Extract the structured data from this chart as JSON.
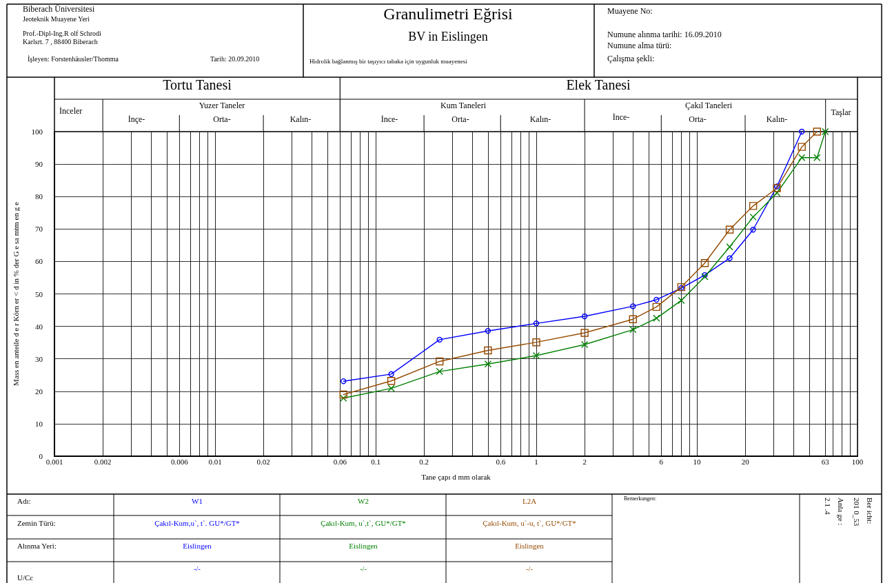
{
  "chart_data": {
    "type": "line",
    "title": "Granulimetri Eğrisi",
    "subtitle": "BV in Eislingen",
    "xlabel": "Tane çapı d mm olarak",
    "ylabel": "Mass en anteile d e r Körn er < d in % der G e sa mtm en g e",
    "x": [
      0.063,
      0.125,
      0.25,
      0.5,
      1,
      2,
      4,
      5.6,
      8,
      11.2,
      16,
      22.4,
      31.5,
      45,
      56,
      63
    ],
    "series": [
      {
        "name": "W1",
        "color": "#0000ff",
        "marker": "circle",
        "values": [
          23.1,
          25.3,
          35.9,
          38.6,
          40.9,
          43.1,
          46.2,
          48.2,
          51.8,
          55.8,
          61.0,
          69.8,
          83.1,
          100,
          null,
          null
        ]
      },
      {
        "name": "W2",
        "color": "#008000",
        "marker": "cross",
        "values": [
          17.9,
          20.9,
          26.1,
          28.4,
          31.0,
          34.4,
          39.0,
          42.5,
          48.0,
          55.3,
          64.5,
          73.7,
          81.1,
          92.0,
          92.0,
          100
        ]
      },
      {
        "name": "L2A",
        "color": "#964b00",
        "marker": "square",
        "values": [
          19.0,
          23.2,
          29.2,
          32.6,
          35.1,
          38.0,
          42.2,
          46.0,
          52.1,
          59.5,
          69.8,
          77.1,
          82.6,
          95.3,
          100,
          null
        ]
      }
    ],
    "xlim": [
      0.001,
      100
    ],
    "ylim": [
      0,
      100
    ],
    "xticks": [
      0.001,
      0.002,
      {
        "value": 0.003,
        "label": null
      },
      {
        "value": 0.004,
        "label": null
      },
      {
        "value": 0.005,
        "label": null
      },
      0.006,
      {
        "value": 0.007,
        "label": null
      },
      {
        "value": 0.008,
        "label": null
      },
      {
        "value": 0.009,
        "label": null
      },
      0.01,
      0.02,
      {
        "value": 0.03,
        "label": null
      },
      {
        "value": 0.04,
        "label": null
      },
      {
        "value": 0.05,
        "label": null
      },
      0.06,
      {
        "value": 0.07,
        "label": null
      },
      {
        "value": 0.08,
        "label": null
      },
      {
        "value": 0.09,
        "label": null
      },
      0.1,
      0.2,
      {
        "value": 0.3,
        "label": null
      },
      {
        "value": 0.4,
        "label": null
      },
      {
        "value": 0.5,
        "label": null
      },
      0.6,
      {
        "value": 0.7,
        "label": null
      },
      {
        "value": 0.8,
        "label": null
      },
      {
        "value": 0.9,
        "label": null
      },
      1,
      2,
      {
        "value": 3,
        "label": null
      },
      {
        "value": 4,
        "label": null
      },
      {
        "value": 5,
        "label": null
      },
      6,
      {
        "value": 7,
        "label": null
      },
      {
        "value": 8,
        "label": null
      },
      {
        "value": 9,
        "label": null
      },
      10,
      20,
      {
        "value": 30,
        "label": null
      },
      {
        "value": 40,
        "label": null
      },
      {
        "value": 50,
        "label": null
      },
      63,
      {
        "value": 70,
        "label": null
      },
      {
        "value": 80,
        "label": null
      },
      {
        "value": 90,
        "label": null
      },
      100
    ],
    "yticks": [
      0,
      10,
      20,
      30,
      40,
      50,
      60,
      70,
      80,
      90,
      100
    ],
    "log": "x",
    "grid": true,
    "legend": false,
    "line_style": "solid",
    "annotations": [
      "Biberach Üniversitesi",
      "Jeoteknik Muayene Yeri",
      "Prof.-Dipl-Ing.R olf Schrodi",
      "Karlsrt. 7 , 88400 Biberach",
      "İşleyen: Forstenhäusler/Thomma",
      "Tarih: 20.09.2010",
      "Hidrolik bağlanmış bir taşıyıcı tabaka için uygunluk muayenesi",
      "Muayene No:",
      "Numune alınma tarihi: 16.09.2010",
      "Numune alma türü:",
      "Çalışma şekli:",
      "Tortu Tanesi",
      "Elek Tanesi",
      "İnceler",
      "Yuzer Taneler",
      "İnçe-",
      "Orta-",
      "Kalın-",
      "Kum Taneleri",
      "İnce-",
      "Orta-",
      "Kalın-",
      "Çakıl Taneleri",
      "İnce-",
      "Orta-",
      "Kalın-",
      "Taşlar",
      "Adı:",
      "Zemin Türü:",
      "Alınma Yeri:",
      "U/Cc",
      "Çakıl-Kum,u`, t`. GU*/GT*",
      "Çakıl-Kum, u`,t`, GU*/GT*",
      "Çakıl-Kum, u`-u, t`, GU*/GT*",
      "Eislingen",
      "Eislingen",
      "Eislingen",
      "-/-",
      "-/-",
      "-/-",
      "Bemerkungen:",
      "Ber icht:",
      "201 0_53",
      "Anla ge :",
      "2.1 .4"
    ]
  }
}
